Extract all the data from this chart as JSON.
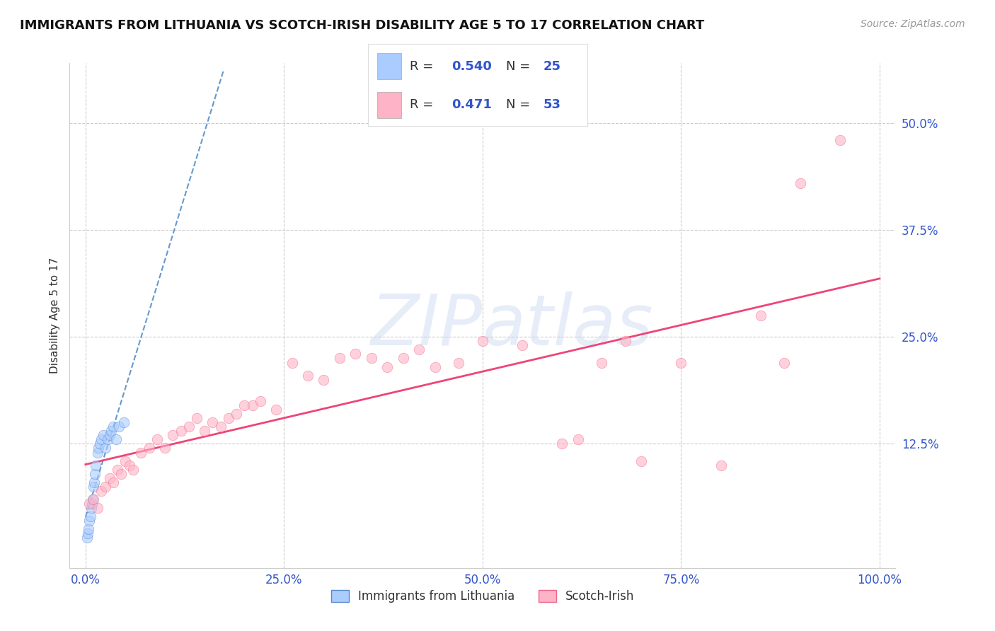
{
  "title": "IMMIGRANTS FROM LITHUANIA VS SCOTCH-IRISH DISABILITY AGE 5 TO 17 CORRELATION CHART",
  "source_text": "Source: ZipAtlas.com",
  "ylabel": "Disability Age 5 to 17",
  "xlim": [
    -2,
    102
  ],
  "ylim": [
    -2,
    57
  ],
  "background_color": "#ffffff",
  "grid_color": "#cccccc",
  "lithuania_x": [
    0.2,
    0.3,
    0.4,
    0.5,
    0.6,
    0.7,
    0.8,
    0.9,
    1.0,
    1.1,
    1.2,
    1.3,
    1.5,
    1.6,
    1.8,
    2.0,
    2.2,
    2.5,
    2.8,
    3.0,
    3.2,
    3.5,
    3.8,
    4.2,
    4.8
  ],
  "lithuania_y": [
    1.5,
    2.0,
    2.5,
    3.5,
    4.0,
    5.0,
    5.5,
    6.0,
    7.5,
    8.0,
    9.0,
    10.0,
    11.5,
    12.0,
    12.5,
    13.0,
    13.5,
    12.0,
    13.0,
    13.5,
    14.0,
    14.5,
    13.0,
    14.5,
    15.0
  ],
  "lithuania_color": "#aaccff",
  "lithuania_edge_color": "#5588cc",
  "lithuania_trendline_color": "#6699cc",
  "scotchirish_x": [
    0.5,
    1.0,
    1.5,
    2.0,
    2.5,
    3.0,
    3.5,
    4.0,
    4.5,
    5.0,
    5.5,
    6.0,
    7.0,
    8.0,
    9.0,
    10.0,
    11.0,
    12.0,
    13.0,
    14.0,
    15.0,
    16.0,
    17.0,
    18.0,
    19.0,
    20.0,
    21.0,
    22.0,
    24.0,
    26.0,
    28.0,
    30.0,
    32.0,
    34.0,
    36.0,
    38.0,
    40.0,
    42.0,
    44.0,
    47.0,
    50.0,
    55.0,
    60.0,
    62.0,
    65.0,
    68.0,
    70.0,
    75.0,
    80.0,
    85.0,
    88.0,
    90.0,
    95.0
  ],
  "scotchirish_y": [
    5.5,
    6.0,
    5.0,
    7.0,
    7.5,
    8.5,
    8.0,
    9.5,
    9.0,
    10.5,
    10.0,
    9.5,
    11.5,
    12.0,
    13.0,
    12.0,
    13.5,
    14.0,
    14.5,
    15.5,
    14.0,
    15.0,
    14.5,
    15.5,
    16.0,
    17.0,
    17.0,
    17.5,
    16.5,
    22.0,
    20.5,
    20.0,
    22.5,
    23.0,
    22.5,
    21.5,
    22.5,
    23.5,
    21.5,
    22.0,
    24.5,
    24.0,
    12.5,
    13.0,
    22.0,
    24.5,
    10.5,
    22.0,
    10.0,
    27.5,
    22.0,
    43.0,
    48.0
  ],
  "scotchirish_color": "#ffb3c6",
  "scotchirish_edge_color": "#ee6688",
  "scotchirish_trendline_color": "#ee4477",
  "legend_blue_color": "#aaccff",
  "legend_pink_color": "#ffb3c6",
  "legend_text_color": "#3355cc",
  "marker_size": 110,
  "marker_alpha": 0.6,
  "title_fontsize": 13,
  "axis_label_fontsize": 11,
  "tick_fontsize": 12,
  "tick_color": "#3355cc",
  "source_fontsize": 10,
  "source_color": "#999999",
  "xtick_positions": [
    0,
    25,
    50,
    75,
    100
  ],
  "ytick_positions": [
    12.5,
    25.0,
    37.5,
    50.0
  ],
  "yticklabels": [
    "12.5%",
    "25.0%",
    "37.5%",
    "50.0%"
  ],
  "xticklabels": [
    "0.0%",
    "25.0%",
    "50.0%",
    "75.0%",
    "100.0%"
  ]
}
